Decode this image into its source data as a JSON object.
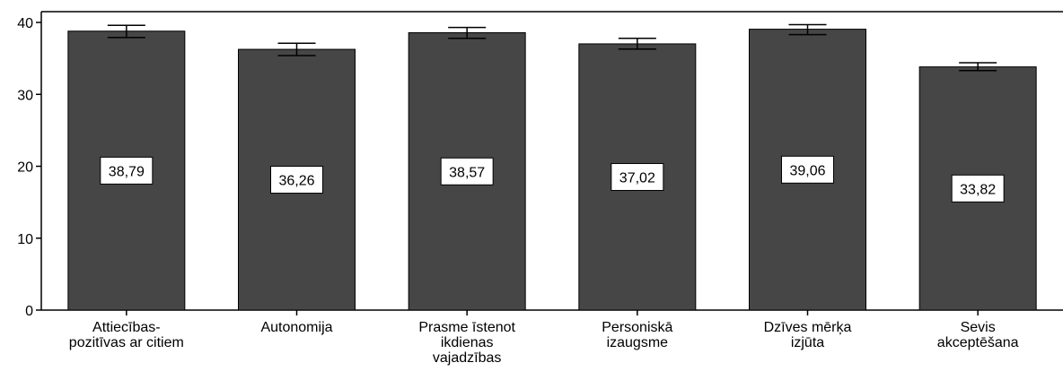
{
  "chart_data": {
    "type": "bar",
    "categories": [
      [
        "Attiecības-",
        "pozitīvas ar citiem"
      ],
      [
        "Autonomija"
      ],
      [
        "Prasme īstenot",
        "ikdienas",
        "vajadzības"
      ],
      [
        "Personiskā",
        "izaugsme"
      ],
      [
        "Dzīves mērķa",
        "izjūta"
      ],
      [
        "Sevis",
        "akceptēšana"
      ]
    ],
    "values": [
      38.79,
      36.26,
      38.57,
      37.02,
      39.06,
      33.82
    ],
    "value_labels": [
      "38,79",
      "36,26",
      "38,57",
      "37,02",
      "39,06",
      "33,82"
    ],
    "error_bars": [
      [
        37.9,
        39.6
      ],
      [
        35.4,
        37.1
      ],
      [
        37.8,
        39.3
      ],
      [
        36.3,
        37.8
      ],
      [
        38.3,
        39.7
      ],
      [
        33.3,
        34.4
      ]
    ],
    "title": "",
    "xlabel": "",
    "ylabel": "",
    "ylim": [
      0,
      41.5
    ],
    "yticks": [
      0,
      10,
      20,
      30,
      40
    ],
    "ytick_labels": [
      "0",
      "10",
      "20",
      "30",
      "40"
    ],
    "grid": false,
    "bar_color": "#464646",
    "bar_edge_color": "#000000"
  }
}
